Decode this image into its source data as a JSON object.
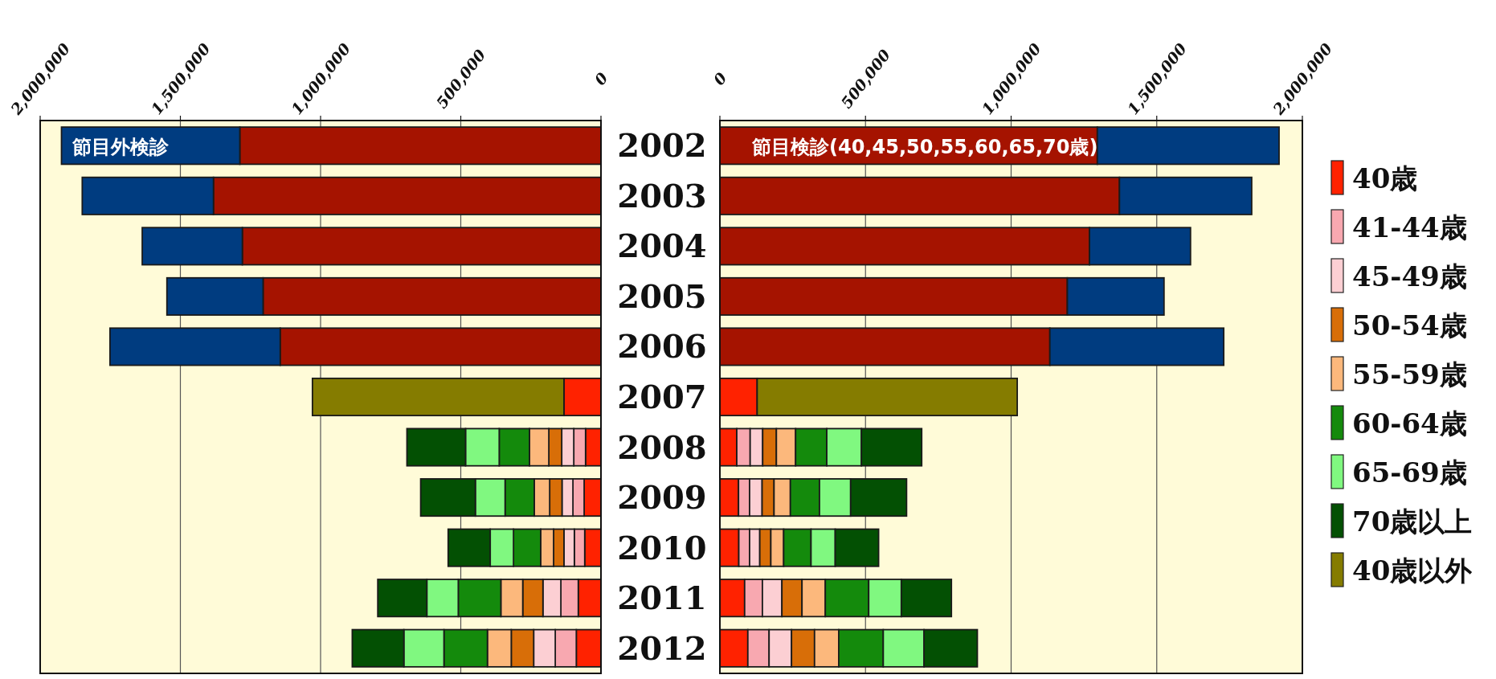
{
  "chart_data": [
    {
      "type": "bar",
      "orientation": "horizontal",
      "stacked": true,
      "title": "節目外検診",
      "categories": [
        "2002",
        "2003",
        "2004",
        "2005",
        "2006",
        "2007",
        "2008",
        "2009",
        "2010",
        "2011",
        "2012"
      ],
      "xlim": [
        2000000,
        0
      ],
      "xticks": [
        {
          "value": 2000000,
          "label": "2,000,000"
        },
        {
          "value": 1500000,
          "label": "1,500,000"
        },
        {
          "value": 1000000,
          "label": "1,000,000"
        },
        {
          "value": 500000,
          "label": "500,000"
        },
        0
      ],
      "grid": "x",
      "legend": false,
      "tick_labels": "x",
      "series": [
        {
          "color": "#a51300",
          "values": [
            1288000,
            1382000,
            1279000,
            1205000,
            1144000,
            null,
            null,
            null,
            null,
            null,
            null
          ]
        },
        {
          "color": "#003c80",
          "values": [
            636000,
            468000,
            357000,
            343000,
            607000,
            null,
            null,
            null,
            null,
            null,
            null
          ]
        },
        {
          "color": "#ff2200",
          "values": [
            null,
            null,
            null,
            null,
            null,
            132000,
            55000,
            60000,
            58000,
            81000,
            88000
          ]
        },
        {
          "color": "#f8a8b0",
          "values": [
            null,
            null,
            null,
            null,
            null,
            null,
            42000,
            40000,
            37000,
            62000,
            75000
          ]
        },
        {
          "color": "#fccfd3",
          "values": [
            null,
            null,
            null,
            null,
            null,
            null,
            43000,
            39000,
            37000,
            64000,
            77000
          ]
        },
        {
          "color": "#d86e08",
          "values": [
            null,
            null,
            null,
            null,
            null,
            null,
            46000,
            44000,
            37000,
            72000,
            80000
          ]
        },
        {
          "color": "#fcb87c",
          "values": [
            null,
            null,
            null,
            null,
            null,
            null,
            69000,
            55000,
            46000,
            78000,
            85000
          ]
        },
        {
          "color": "#148a0c",
          "values": [
            null,
            null,
            null,
            null,
            null,
            null,
            108000,
            104000,
            97000,
            152000,
            155000
          ]
        },
        {
          "color": "#80f880",
          "values": [
            null,
            null,
            null,
            null,
            null,
            null,
            120000,
            106000,
            83000,
            112000,
            143000
          ]
        },
        {
          "color": "#035003",
          "values": [
            null,
            null,
            null,
            null,
            null,
            null,
            209000,
            195000,
            150000,
            175000,
            184000
          ]
        },
        {
          "color": "#857c00",
          "values": [
            null,
            null,
            null,
            null,
            null,
            897000,
            null,
            null,
            null,
            null,
            null
          ]
        }
      ]
    },
    {
      "type": "bar",
      "orientation": "horizontal",
      "stacked": true,
      "title": "節目検診(40,45,50,55,60,65,70歳)",
      "categories": [
        "2002",
        "2003",
        "2004",
        "2005",
        "2006",
        "2007",
        "2008",
        "2009",
        "2010",
        "2011",
        "2012"
      ],
      "xlim": [
        0,
        2000000
      ],
      "xticks": [
        0,
        {
          "value": 500000,
          "label": "500,000"
        },
        {
          "value": 1000000,
          "label": "1,000,000"
        },
        {
          "value": 1500000,
          "label": "1,500,000"
        },
        {
          "value": 2000000,
          "label": "2,000,000"
        }
      ],
      "grid": "x",
      "legend": "right",
      "series": [
        {
          "color": "#a51300",
          "values": [
            1296000,
            1372000,
            1269000,
            1193000,
            1133000,
            null,
            null,
            null,
            null,
            null,
            null
          ]
        },
        {
          "color": "#003c80",
          "values": [
            624000,
            454000,
            347000,
            332000,
            597000,
            null,
            null,
            null,
            null,
            null,
            null
          ]
        },
        {
          "name": "40歳",
          "color": "#ff2200",
          "values": [
            null,
            null,
            null,
            null,
            null,
            128000,
            58000,
            64000,
            65000,
            85000,
            96000
          ]
        },
        {
          "name": "41-44歳",
          "color": "#f8a8b0",
          "values": [
            null,
            null,
            null,
            null,
            null,
            null,
            46000,
            38000,
            37000,
            61000,
            73000
          ]
        },
        {
          "name": "45-49歳",
          "color": "#fccfd3",
          "values": [
            null,
            null,
            null,
            null,
            null,
            null,
            43000,
            43000,
            35000,
            67000,
            77000
          ]
        },
        {
          "name": "50-54歳",
          "color": "#d86e08",
          "values": [
            null,
            null,
            null,
            null,
            null,
            null,
            47000,
            41000,
            38000,
            69000,
            79000
          ]
        },
        {
          "name": "55-59歳",
          "color": "#fcb87c",
          "values": [
            null,
            null,
            null,
            null,
            null,
            null,
            66000,
            56000,
            44000,
            80000,
            83000
          ]
        },
        {
          "name": "60-64歳",
          "color": "#148a0c",
          "values": [
            null,
            null,
            null,
            null,
            null,
            null,
            107000,
            100000,
            94000,
            149000,
            153000
          ]
        },
        {
          "name": "65-69歳",
          "color": "#80f880",
          "values": [
            null,
            null,
            null,
            null,
            null,
            null,
            119000,
            107000,
            83000,
            112000,
            140000
          ]
        },
        {
          "name": "70歳以上",
          "color": "#035003",
          "values": [
            null,
            null,
            null,
            null,
            null,
            null,
            207000,
            192000,
            149000,
            172000,
            183000
          ]
        },
        {
          "name": "40歳以外",
          "color": "#857c00",
          "values": [
            null,
            null,
            null,
            null,
            null,
            893000,
            null,
            null,
            null,
            null,
            null
          ]
        }
      ]
    }
  ]
}
